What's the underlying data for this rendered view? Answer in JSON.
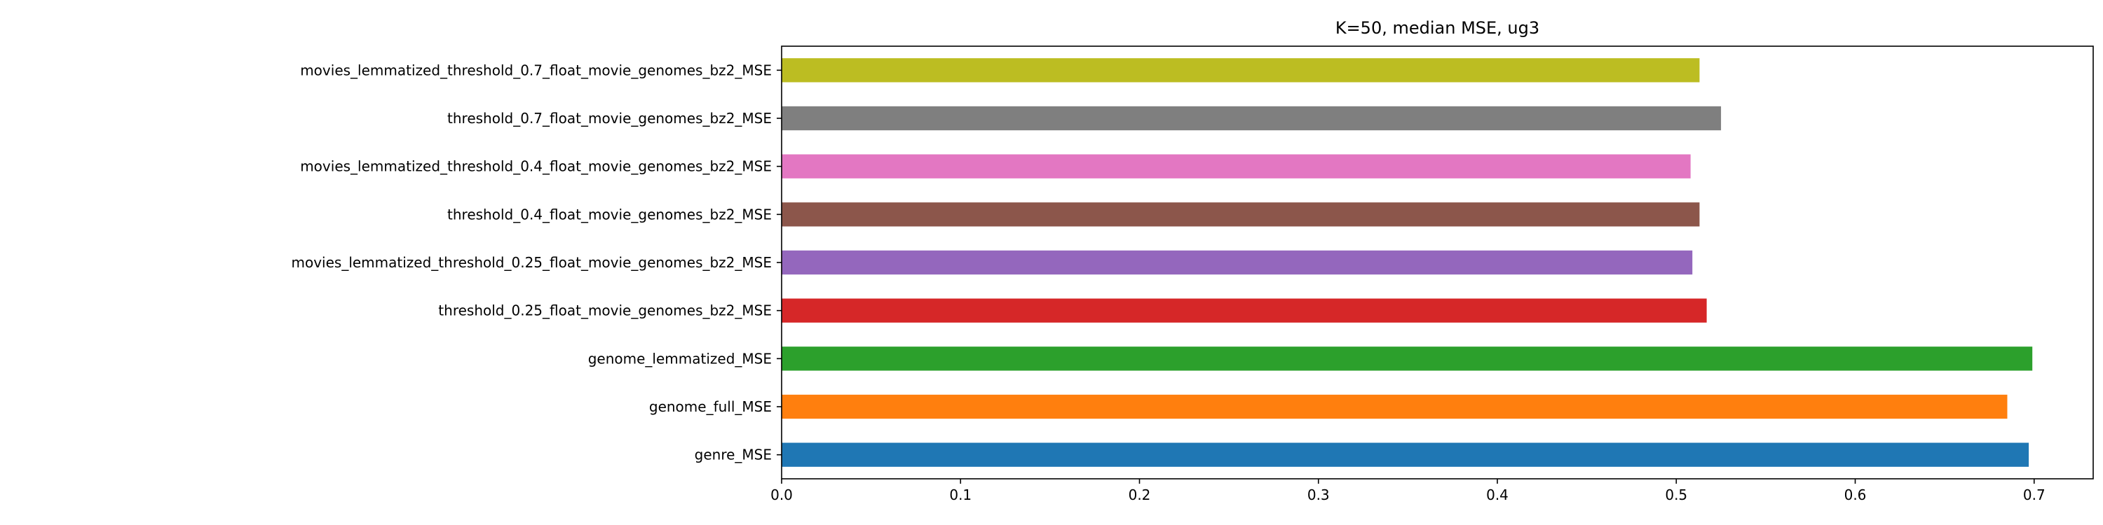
{
  "chart_data": {
    "type": "bar",
    "orientation": "horizontal",
    "title": "K=50, median MSE, ug3",
    "xlabel": "",
    "ylabel": "",
    "xlim": [
      0,
      0.733
    ],
    "xticks": [
      0.0,
      0.1,
      0.2,
      0.3,
      0.4,
      0.5,
      0.6,
      0.7
    ],
    "xtick_labels": [
      "0.0",
      "0.1",
      "0.2",
      "0.3",
      "0.4",
      "0.5",
      "0.6",
      "0.7"
    ],
    "grid": false,
    "legend": "none",
    "categories": [
      "genre_MSE",
      "genome_full_MSE",
      "genome_lemmatized_MSE",
      "threshold_0.25_float_movie_genomes_bz2_MSE",
      "movies_lemmatized_threshold_0.25_float_movie_genomes_bz2_MSE",
      "threshold_0.4_float_movie_genomes_bz2_MSE",
      "movies_lemmatized_threshold_0.4_float_movie_genomes_bz2_MSE",
      "threshold_0.7_float_movie_genomes_bz2_MSE",
      "movies_lemmatized_threshold_0.7_float_movie_genomes_bz2_MSE"
    ],
    "values": [
      0.697,
      0.685,
      0.699,
      0.517,
      0.509,
      0.513,
      0.508,
      0.525,
      0.513
    ],
    "colors": [
      "#1f77b4",
      "#ff7f0e",
      "#2ca02c",
      "#d62728",
      "#9467bd",
      "#8c564b",
      "#e377c2",
      "#7f7f7f",
      "#bcbd22"
    ]
  }
}
